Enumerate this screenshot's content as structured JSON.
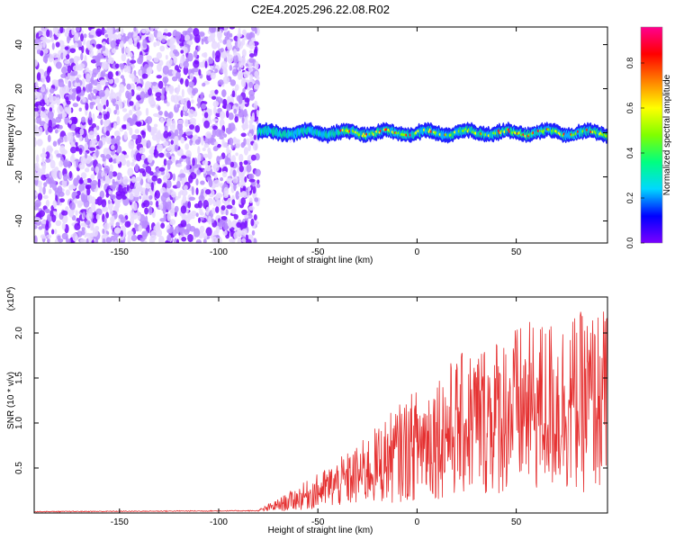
{
  "title": "C2E4.2025.296.22.08.R02",
  "chart_data": [
    {
      "type": "heatmap",
      "xlabel": "Height of straight line (km)",
      "ylabel": "Frequency (Hz)",
      "xlim": [
        -193,
        96
      ],
      "ylim": [
        -50,
        48
      ],
      "xticks": [
        -150,
        -100,
        -50,
        0,
        50
      ],
      "yticks": [
        -40,
        -20,
        0,
        20,
        40
      ],
      "noise_region_x": [
        -193,
        -80
      ],
      "signal_band_freq_hz": 0,
      "colorbar": {
        "label": "Normalized spectral amplitude",
        "range": [
          0,
          0.96
        ],
        "ticks": [
          0.0,
          0.2,
          0.4,
          0.6,
          0.8
        ],
        "colors": [
          "#ffffff",
          "#e8d8ff",
          "#7a00ff",
          "#0000ff",
          "#00d8ff",
          "#00ff80",
          "#80ff00",
          "#ffff00",
          "#ff8000",
          "#ff0000",
          "#ff0090"
        ]
      }
    },
    {
      "type": "line",
      "xlabel": "Height of straight line (km)",
      "ylabel": "SNR (10 * v/v)",
      "y_multiplier_label": "(x10",
      "y_multiplier_exp": "4",
      "xlim": [
        -193,
        96
      ],
      "ylim": [
        0,
        2.4
      ],
      "xticks": [
        -150,
        -100,
        -50,
        0,
        50
      ],
      "yticks": [
        0.5,
        1.0,
        1.5,
        2.0
      ],
      "color": "#e53030",
      "trend": [
        {
          "x": -193,
          "y": 0.01
        },
        {
          "x": -80,
          "y": 0.02
        },
        {
          "x": -70,
          "y": 0.08
        },
        {
          "x": -50,
          "y": 0.22
        },
        {
          "x": -30,
          "y": 0.38
        },
        {
          "x": -10,
          "y": 0.6
        },
        {
          "x": 10,
          "y": 0.8
        },
        {
          "x": 30,
          "y": 0.95
        },
        {
          "x": 50,
          "y": 1.05
        },
        {
          "x": 70,
          "y": 1.1
        },
        {
          "x": 96,
          "y": 1.15
        }
      ]
    }
  ]
}
